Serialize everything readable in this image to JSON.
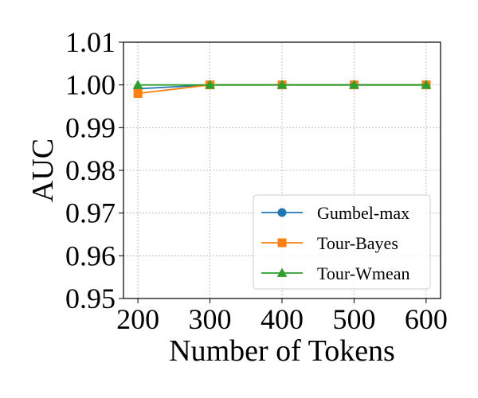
{
  "chart_data": {
    "type": "line",
    "xlabel": "Number of Tokens",
    "ylabel": "AUC",
    "x": [
      200,
      300,
      400,
      500,
      600
    ],
    "xticks": [
      "200",
      "300",
      "400",
      "500",
      "600"
    ],
    "xlim": [
      180,
      620
    ],
    "yticks": [
      "0.95",
      "0.96",
      "0.97",
      "0.98",
      "0.99",
      "1.00",
      "1.01"
    ],
    "ylim": [
      0.95,
      1.01
    ],
    "grid": true,
    "legend": "lower-right",
    "series": [
      {
        "name": "Gumbel-max",
        "marker": "circle",
        "color": "#1f77b4",
        "values": [
          0.9991,
          1.0,
          1.0,
          1.0,
          1.0
        ]
      },
      {
        "name": "Tour-Bayes",
        "marker": "square",
        "color": "#ff7f0e",
        "values": [
          0.998,
          1.0,
          1.0,
          1.0,
          1.0
        ]
      },
      {
        "name": "Tour-Wmean",
        "marker": "triangle",
        "color": "#2ca02c",
        "values": [
          1.0,
          1.0,
          1.0,
          1.0,
          1.0
        ]
      }
    ]
  }
}
